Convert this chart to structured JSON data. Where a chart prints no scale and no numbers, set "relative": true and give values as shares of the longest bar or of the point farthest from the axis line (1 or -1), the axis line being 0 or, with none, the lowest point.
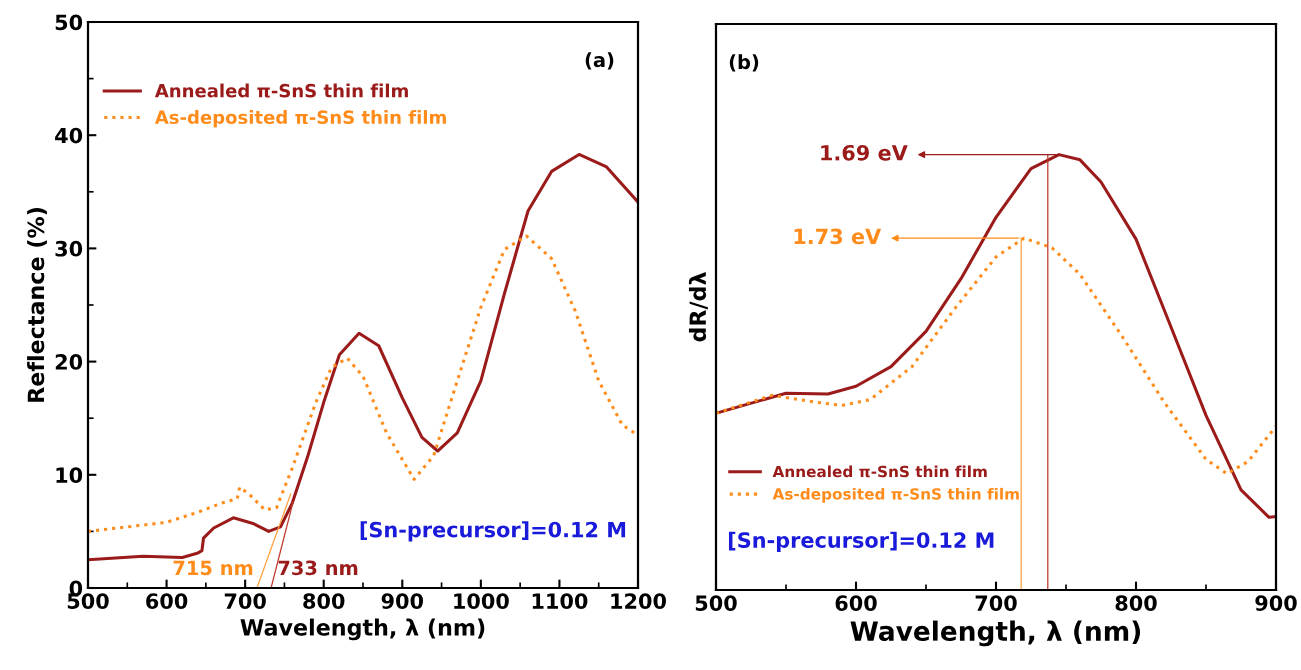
{
  "chart_data": [
    {
      "type": "line",
      "title": "(a)",
      "xlabel": "Wavelength, λ (nm)",
      "ylabel": "Reflectance (%)",
      "xlim": [
        500,
        1200
      ],
      "ylim": [
        0,
        50
      ],
      "xticks": [
        500,
        600,
        700,
        800,
        900,
        1000,
        1100,
        1200
      ],
      "yticks": [
        0,
        10,
        20,
        30,
        40,
        50
      ],
      "legend": "top left",
      "grid": false,
      "series": [
        {
          "name": "Annealed π-SnS thin film",
          "color": "#9b1b1b",
          "line_style": "solid",
          "x": [
            500,
            570,
            620,
            640,
            645,
            647,
            660,
            685,
            710,
            730,
            745,
            760,
            780,
            800,
            820,
            845,
            870,
            900,
            925,
            945,
            970,
            1000,
            1030,
            1060,
            1090,
            1125,
            1160,
            1200
          ],
          "values": [
            2.5,
            2.8,
            2.7,
            3.1,
            3.3,
            4.4,
            5.3,
            6.2,
            5.7,
            5.0,
            5.4,
            7.5,
            11.7,
            16.4,
            20.6,
            22.5,
            21.4,
            16.8,
            13.3,
            12.1,
            13.7,
            18.3,
            26.0,
            33.3,
            36.8,
            38.3,
            37.2,
            34.1
          ]
        },
        {
          "name": "As-deposited π-SnS thin film",
          "color": "#ff8c1a",
          "line_style": "dotted",
          "x": [
            500,
            600,
            640,
            670,
            690,
            693,
            705,
            725,
            740,
            760,
            790,
            810,
            830,
            850,
            880,
            915,
            940,
            970,
            1000,
            1030,
            1058,
            1090,
            1120,
            1150,
            1180,
            1200
          ],
          "values": [
            5.0,
            5.8,
            6.7,
            7.5,
            7.9,
            8.9,
            8.3,
            6.9,
            7.1,
            10.6,
            16.4,
            19.5,
            20.3,
            18.7,
            13.7,
            9.6,
            11.7,
            18.3,
            24.8,
            29.9,
            31.1,
            29.1,
            24.5,
            18.3,
            14.4,
            13.5
          ]
        },
        {
          "color": "#c0392b",
          "line_style": "solid",
          "x": [
            733,
            761
          ],
          "values": [
            0,
            7.6
          ]
        },
        {
          "color": "#ffa040",
          "line_style": "solid",
          "x": [
            715,
            758
          ],
          "values": [
            0,
            8.3
          ]
        }
      ],
      "annotations": [
        {
          "text": "733 nm",
          "x": 733,
          "y": 0
        },
        {
          "text": "715 nm",
          "x": 715,
          "y": 0
        },
        "[Sn-precursor]=0.12 M"
      ]
    },
    {
      "type": "line",
      "title": "(b)",
      "xlabel": "Wavelength, λ (nm)",
      "ylabel": "dR/dλ",
      "relative": true,
      "xlim": [
        500,
        900
      ],
      "xticks": [
        500,
        600,
        700,
        800,
        900
      ],
      "legend": "bottom",
      "grid": false,
      "series": [
        {
          "name": "Annealed π-SnS thin film",
          "color": "#9b1b1b",
          "line_style": "solid",
          "x": [
            500,
            550,
            580,
            600,
            625,
            650,
            675,
            700,
            725,
            745,
            760,
            775,
            800,
            825,
            850,
            875,
            895,
            900
          ],
          "values": [
            0.406,
            0.452,
            0.45,
            0.468,
            0.513,
            0.594,
            0.715,
            0.856,
            0.968,
            1.0,
            0.988,
            0.937,
            0.806,
            0.604,
            0.401,
            0.23,
            0.167,
            0.169
          ]
        },
        {
          "name": "As-deposited π-SnS thin film",
          "color": "#ff8c1a",
          "line_style": "dotted",
          "x": [
            500,
            540,
            570,
            590,
            610,
            640,
            670,
            700,
            720,
            740,
            760,
            790,
            820,
            850,
            865,
            880,
            900
          ],
          "values": [
            0.406,
            0.447,
            0.432,
            0.424,
            0.437,
            0.513,
            0.644,
            0.765,
            0.808,
            0.786,
            0.725,
            0.583,
            0.432,
            0.3,
            0.267,
            0.295,
            0.376
          ]
        },
        {
          "color": "#c0392b",
          "line_style": "solid",
          "x": [
            737,
            737
          ],
          "values": [
            0,
            1.0
          ]
        },
        {
          "color": "#ffa040",
          "line_style": "solid",
          "x": [
            718,
            718
          ],
          "values": [
            0,
            0.808
          ]
        }
      ],
      "annotations": [
        {
          "text": "1.69 eV",
          "x": 737,
          "y": 1.0
        },
        {
          "text": "1.73 eV",
          "x": 718,
          "y": 0.808
        },
        "[Sn-precursor]=0.12 M"
      ]
    }
  ]
}
